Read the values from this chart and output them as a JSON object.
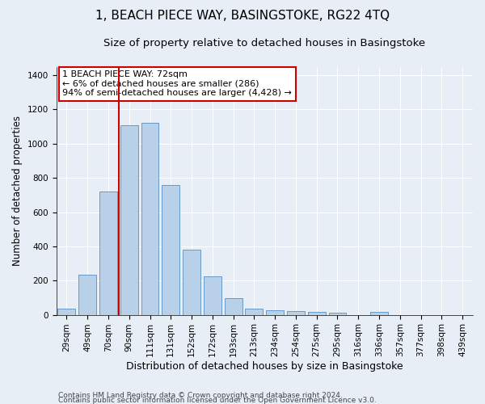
{
  "title": "1, BEACH PIECE WAY, BASINGSTOKE, RG22 4TQ",
  "subtitle": "Size of property relative to detached houses in Basingstoke",
  "xlabel": "Distribution of detached houses by size in Basingstoke",
  "ylabel": "Number of detached properties",
  "footnote1": "Contains HM Land Registry data © Crown copyright and database right 2024.",
  "footnote2": "Contains public sector information licensed under the Open Government Licence v3.0.",
  "categories": [
    "29sqm",
    "49sqm",
    "70sqm",
    "90sqm",
    "111sqm",
    "131sqm",
    "152sqm",
    "172sqm",
    "193sqm",
    "213sqm",
    "234sqm",
    "254sqm",
    "275sqm",
    "295sqm",
    "316sqm",
    "336sqm",
    "357sqm",
    "377sqm",
    "398sqm",
    "439sqm"
  ],
  "values": [
    35,
    235,
    720,
    1110,
    1120,
    760,
    380,
    225,
    95,
    35,
    25,
    20,
    15,
    10,
    0,
    15,
    0,
    0,
    0,
    0
  ],
  "bar_color": "#b8d0e8",
  "bar_edge_color": "#6699cc",
  "background_color": "#e8eef5",
  "grid_color": "#ffffff",
  "vline_color": "#cc0000",
  "annotation_text": "1 BEACH PIECE WAY: 72sqm\n← 6% of detached houses are smaller (286)\n94% of semi-detached houses are larger (4,428) →",
  "annotation_box_facecolor": "#ffffff",
  "annotation_box_edgecolor": "#cc0000",
  "ylim": [
    0,
    1450
  ],
  "yticks": [
    0,
    200,
    400,
    600,
    800,
    1000,
    1200,
    1400
  ],
  "title_fontsize": 11,
  "subtitle_fontsize": 9.5,
  "xlabel_fontsize": 9,
  "ylabel_fontsize": 8.5,
  "tick_fontsize": 7.5,
  "annotation_fontsize": 8,
  "footnote_fontsize": 6.5
}
